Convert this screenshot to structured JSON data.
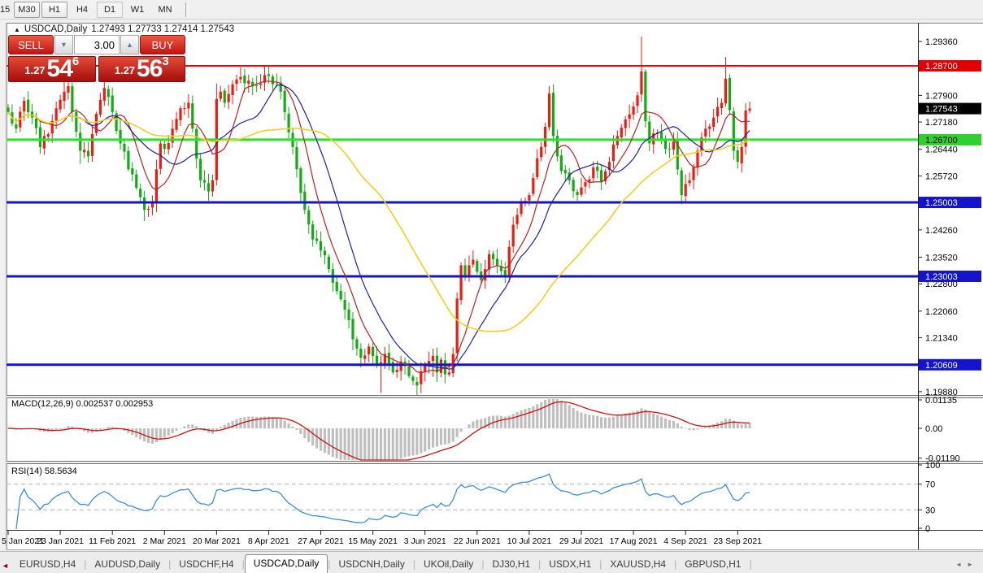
{
  "toolbar": {
    "clipped_label": "15",
    "timeframes": [
      {
        "label": "M30",
        "state": "raised"
      },
      {
        "label": "H1",
        "state": "raised"
      },
      {
        "label": "H4",
        "state": "flat"
      },
      {
        "label": "D1",
        "state": "active"
      },
      {
        "label": "W1",
        "state": "flat"
      },
      {
        "label": "MN",
        "state": "flat"
      }
    ]
  },
  "window": {
    "title_symbol": "USDCAD,Daily",
    "title_ohlc": "1.27493 1.27733 1.27414 1.27543",
    "collapse_icon": "▲"
  },
  "trade_panel": {
    "sell_label": "SELL",
    "buy_label": "BUY",
    "volume": "3.00",
    "sell_price_small": "1.27",
    "sell_price_big": "54",
    "sell_price_sup": "6",
    "buy_price_small": "1.27",
    "buy_price_big": "56",
    "buy_price_sup": "3"
  },
  "price_axis": {
    "ticks": [
      1.2936,
      1.279,
      1.2718,
      1.2644,
      1.2572,
      1.2426,
      1.2352,
      1.228,
      1.2206,
      1.2134,
      1.1988
    ],
    "highlights": [
      {
        "value": 1.287,
        "bg": "#e00000",
        "fg": "#ffffff",
        "name": "resistance-price-label"
      },
      {
        "value": 1.27543,
        "bg": "#000000",
        "fg": "#ffffff",
        "name": "current-price-label"
      },
      {
        "value": 1.267,
        "bg": "#2ed22e",
        "fg": "#000000",
        "name": "green-support-price-label"
      },
      {
        "value": 1.25003,
        "bg": "#1414cc",
        "fg": "#ffffff",
        "name": "blue-level-1-price-label"
      },
      {
        "value": 1.23003,
        "bg": "#1414cc",
        "fg": "#ffffff",
        "name": "blue-level-2-price-label"
      },
      {
        "value": 1.20609,
        "bg": "#1414cc",
        "fg": "#ffffff",
        "name": "blue-level-3-price-label"
      }
    ]
  },
  "macd": {
    "label": "MACD(12,26,9) 0.002537 0.002953",
    "axis_labels": [
      "0.01135",
      "0.00",
      "-0.01190"
    ],
    "axis_values": [
      0.01135,
      0.0,
      -0.0119
    ],
    "last_main": 0.002537,
    "last_signal": 0.002953,
    "histogram_color": "#bfbfbf",
    "signal_color": "#d01010"
  },
  "rsi": {
    "label": "RSI(14) 58.5634",
    "last_value": 58.5634,
    "axis_labels": [
      "100",
      "70",
      "30",
      "0"
    ],
    "axis_values": [
      100,
      70,
      30,
      0
    ],
    "levels": [
      70,
      30
    ],
    "line_color": "#3e8ed0"
  },
  "date_axis": [
    "5 Jan 2021",
    "23 Jan 2021",
    "11 Feb 2021",
    "2 Mar 2021",
    "20 Mar 2021",
    "8 Apr 2021",
    "27 Apr 2021",
    "15 May 2021",
    "3 Jun 2021",
    "22 Jun 2021",
    "10 Jul 2021",
    "29 Jul 2021",
    "17 Aug 2021",
    "4 Sep 2021",
    "23 Sep 2021"
  ],
  "tabs": [
    {
      "label": "EURUSD,H4",
      "active": false
    },
    {
      "label": "AUDUSD,Daily",
      "active": false
    },
    {
      "label": "USDCHF,H4",
      "active": false
    },
    {
      "label": "USDCAD,Daily",
      "active": true
    },
    {
      "label": "USDCNH,Daily",
      "active": false
    },
    {
      "label": "UKOil,Daily",
      "active": false
    },
    {
      "label": "DJ30,H1",
      "active": false
    },
    {
      "label": "USDX,H1",
      "active": false
    },
    {
      "label": "XAUUSD,H4",
      "active": false
    },
    {
      "label": "GBPUSD,H1",
      "active": false
    }
  ],
  "chart_data": {
    "type": "candlestick",
    "symbol": "USDCAD",
    "timeframe": "Daily",
    "title": "USDCAD,Daily",
    "ohlc_label": {
      "open": 1.27493,
      "high": 1.27733,
      "low": 1.27414,
      "close": 1.27543
    },
    "bars_count": 186,
    "bars_per_date_tick": 13,
    "visible_price_range": [
      1.195,
      1.2965
    ],
    "bull_color": "#ee1c10",
    "bear_color": "#12ac12",
    "note_convention": "red = up candle, green = down candle",
    "close_anchors": [
      [
        0,
        1.2745
      ],
      [
        2,
        1.27
      ],
      [
        4,
        1.2775
      ],
      [
        6,
        1.273
      ],
      [
        8,
        1.265
      ],
      [
        10,
        1.2685
      ],
      [
        12,
        1.2755
      ],
      [
        14,
        1.28
      ],
      [
        15,
        1.2815
      ],
      [
        16,
        1.2745
      ],
      [
        18,
        1.264
      ],
      [
        20,
        1.2625
      ],
      [
        22,
        1.274
      ],
      [
        24,
        1.281
      ],
      [
        26,
        1.2745
      ],
      [
        28,
        1.266
      ],
      [
        30,
        1.259
      ],
      [
        32,
        1.254
      ],
      [
        34,
        1.248
      ],
      [
        36,
        1.25
      ],
      [
        38,
        1.266
      ],
      [
        39,
        1.2645
      ],
      [
        41,
        1.27
      ],
      [
        43,
        1.2755
      ],
      [
        45,
        1.277
      ],
      [
        46,
        1.27
      ],
      [
        48,
        1.256
      ],
      [
        50,
        1.253
      ],
      [
        51,
        1.256
      ],
      [
        52,
        1.278
      ],
      [
        53,
        1.28
      ],
      [
        54,
        1.277
      ],
      [
        56,
        1.282
      ],
      [
        58,
        1.284
      ],
      [
        60,
        1.283
      ],
      [
        62,
        1.2815
      ],
      [
        64,
        1.2845
      ],
      [
        66,
        1.282
      ],
      [
        68,
        1.28
      ],
      [
        70,
        1.269
      ],
      [
        72,
        1.259
      ],
      [
        74,
        1.248
      ],
      [
        76,
        1.24
      ],
      [
        78,
        1.237
      ],
      [
        80,
        1.232
      ],
      [
        82,
        1.226
      ],
      [
        84,
        1.221
      ],
      [
        86,
        1.213
      ],
      [
        88,
        1.208
      ],
      [
        90,
        1.211
      ],
      [
        92,
        1.206
      ],
      [
        94,
        1.209
      ],
      [
        96,
        1.204
      ],
      [
        98,
        1.207
      ],
      [
        100,
        1.203
      ],
      [
        102,
        1.2005
      ],
      [
        104,
        1.206
      ],
      [
        106,
        1.2085
      ],
      [
        107,
        1.204
      ],
      [
        108,
        1.2075
      ],
      [
        109,
        1.2035
      ],
      [
        110,
        1.204
      ],
      [
        111,
        1.209
      ],
      [
        112,
        1.224
      ],
      [
        113,
        1.233
      ],
      [
        114,
        1.23
      ],
      [
        116,
        1.2345
      ],
      [
        118,
        1.229
      ],
      [
        120,
        1.236
      ],
      [
        122,
        1.233
      ],
      [
        124,
        1.23
      ],
      [
        126,
        1.244
      ],
      [
        128,
        1.25
      ],
      [
        130,
        1.252
      ],
      [
        132,
        1.262
      ],
      [
        134,
        1.2705
      ],
      [
        135,
        1.2795
      ],
      [
        136,
        1.268
      ],
      [
        138,
        1.2585
      ],
      [
        140,
        1.256
      ],
      [
        142,
        1.252
      ],
      [
        144,
        1.2555
      ],
      [
        146,
        1.2595
      ],
      [
        148,
        1.2555
      ],
      [
        150,
        1.261
      ],
      [
        152,
        1.268
      ],
      [
        154,
        1.2725
      ],
      [
        156,
        1.276
      ],
      [
        157,
        1.279
      ],
      [
        158,
        1.2855
      ],
      [
        159,
        1.272
      ],
      [
        160,
        1.266
      ],
      [
        162,
        1.269
      ],
      [
        164,
        1.2645
      ],
      [
        166,
        1.2665
      ],
      [
        168,
        1.252
      ],
      [
        169,
        1.255
      ],
      [
        170,
        1.256
      ],
      [
        172,
        1.264
      ],
      [
        174,
        1.27
      ],
      [
        176,
        1.273
      ],
      [
        178,
        1.277
      ],
      [
        179,
        1.2835
      ],
      [
        180,
        1.275
      ],
      [
        181,
        1.264
      ],
      [
        182,
        1.261
      ],
      [
        183,
        1.265
      ],
      [
        184,
        1.2749
      ],
      [
        185,
        1.27543
      ]
    ],
    "wick_high_overrides": {
      "14": 1.283,
      "15": 1.2833,
      "24": 1.2838,
      "52": 1.2822,
      "58": 1.2866,
      "64": 1.2868,
      "113": 1.2338,
      "135": 1.2815,
      "136": 1.282,
      "158": 1.2949,
      "179": 1.2894,
      "185": 1.27733
    },
    "wick_low_overrides": {
      "18": 1.2605,
      "20": 1.2608,
      "34": 1.245,
      "50": 1.2505,
      "86": 1.21,
      "93": 1.1985,
      "102": 1.1974,
      "106": 1.2028,
      "168": 1.2495,
      "182": 1.2592,
      "185": 1.27414
    },
    "horizontal_lines": [
      {
        "price": 1.287,
        "color": "#f00000",
        "width": 2,
        "name": "hline-red-resistance"
      },
      {
        "price": 1.267,
        "color": "#2ee02e",
        "width": 3,
        "name": "hline-green-support"
      },
      {
        "price": 1.25003,
        "color": "#1414cc",
        "width": 3,
        "name": "hline-blue-1"
      },
      {
        "price": 1.23003,
        "color": "#1414cc",
        "width": 3,
        "name": "hline-blue-2"
      },
      {
        "price": 1.20609,
        "color": "#1414cc",
        "width": 3,
        "name": "hline-blue-3"
      }
    ],
    "moving_averages": [
      {
        "period": 8,
        "color": "#c02020",
        "name": "ma-fast-red"
      },
      {
        "period": 16,
        "color": "#2020a0",
        "name": "ma-mid-blue"
      },
      {
        "period": 42,
        "color": "#f0d020",
        "name": "ma-slow-yellow"
      }
    ]
  }
}
